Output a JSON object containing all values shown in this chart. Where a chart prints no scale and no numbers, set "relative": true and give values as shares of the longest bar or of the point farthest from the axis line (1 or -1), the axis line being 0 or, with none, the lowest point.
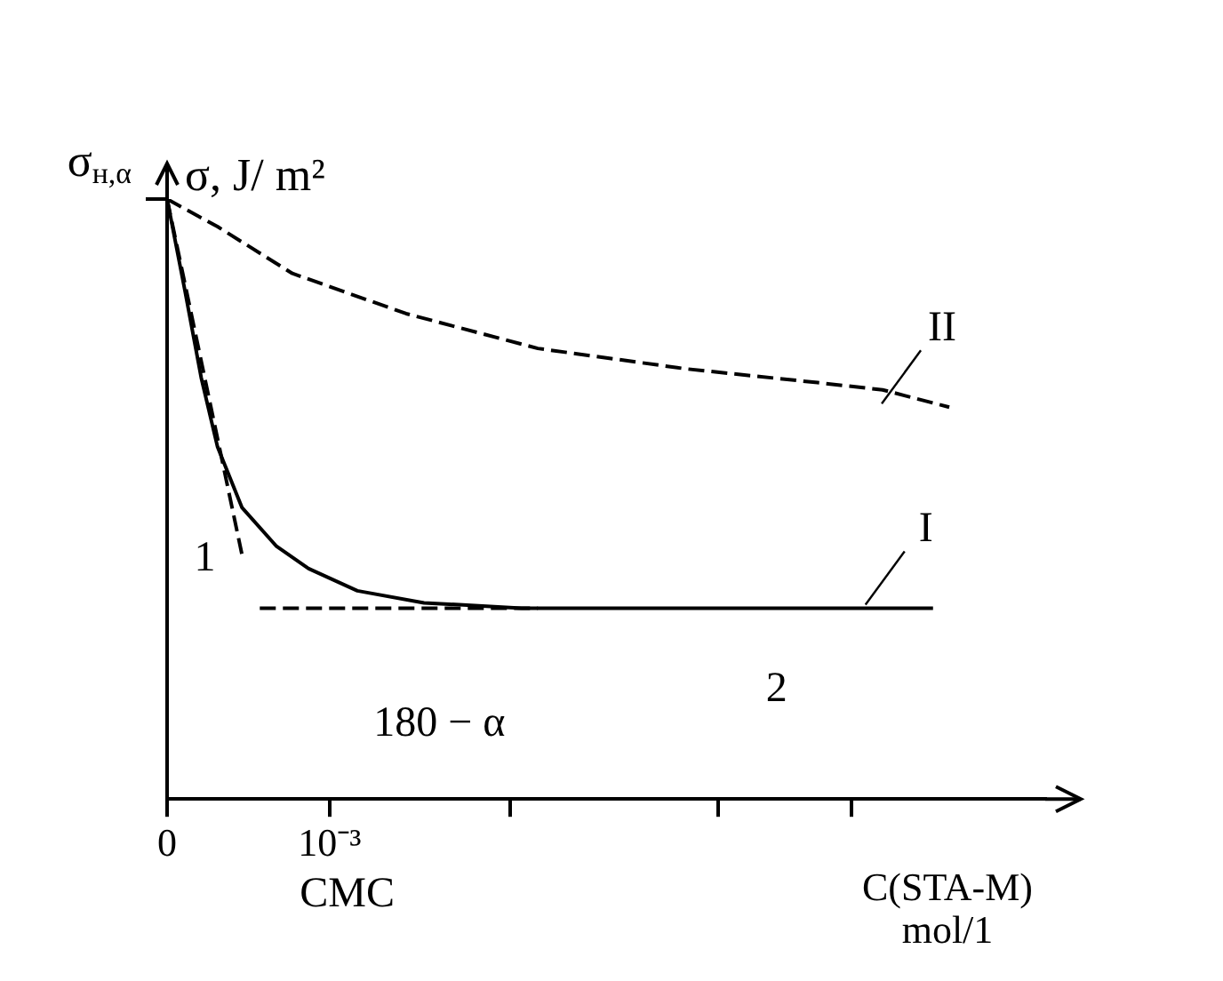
{
  "chart_data": {
    "type": "line",
    "relative": true,
    "xlabel": "C(STA-M)\nmol/1",
    "ylabel": "σ, J/ m²",
    "xlim": [
      0,
      0.0054
    ],
    "xticks": [
      0,
      {
        "value": 0.001,
        "label": "10⁻³"
      },
      {
        "value": 0.00211,
        "label": null
      },
      {
        "value": 0.00339,
        "label": null
      },
      {
        "value": 0.00421,
        "label": null
      }
    ],
    "series": [
      {
        "name": "I",
        "color": "#000000",
        "line_style": "solid",
        "x": [
          0,
          0.00011,
          0.00021,
          0.00031,
          0.00046,
          0.00067,
          0.00087,
          0.00117,
          0.00158,
          0.00218,
          0.00471
        ],
        "values": [
          1,
          0.847,
          0.702,
          0.587,
          0.486,
          0.422,
          0.384,
          0.347,
          0.327,
          0.318,
          0.318
        ]
      },
      {
        "name": "II",
        "color": "#000000",
        "line_style": "dashed",
        "x": [
          0,
          0.00031,
          0.00077,
          0.00147,
          0.00228,
          0.00319,
          0.004,
          0.0044,
          0.00481
        ],
        "values": [
          1,
          0.954,
          0.876,
          0.809,
          0.751,
          0.717,
          0.694,
          0.682,
          0.653
        ]
      },
      {
        "color": "#000000",
        "line_style": "dashed",
        "x": [
          0,
          0.00046
        ],
        "values": [
          1,
          0.408
        ]
      },
      {
        "color": "#000000",
        "line_style": "dashed",
        "x": [
          0.00057,
          0.00228
        ],
        "values": [
          0.318,
          0.318
        ]
      }
    ],
    "annotations": [
      {
        "text": "σ$_{н,α}$",
        "x": 0,
        "y": 1
      },
      "1",
      "2",
      "180 − α",
      "CMC"
    ],
    "grid": false,
    "legend": false,
    "marker": "none"
  }
}
